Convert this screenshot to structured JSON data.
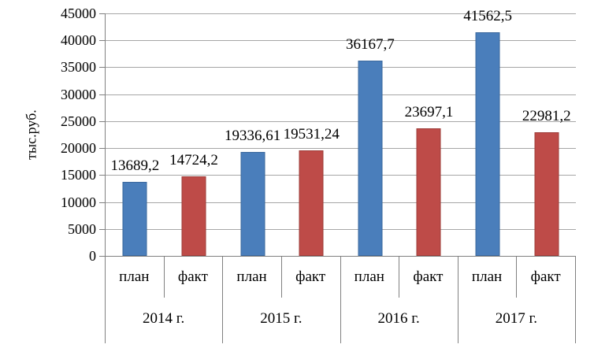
{
  "chart_data": {
    "type": "bar",
    "ylabel": "тыс.руб.",
    "ylim": [
      0,
      45000
    ],
    "ytick_step": 5000,
    "grid": true,
    "legend_position": "none",
    "groups": [
      "2014 г.",
      "2015 г.",
      "2016 г.",
      "2017 г."
    ],
    "sub_categories": [
      "план",
      "факт"
    ],
    "series": [
      {
        "name": "план",
        "color": "#4A7EBB",
        "border_color": "#3B689D",
        "values": [
          13689.2,
          19336.61,
          36167.7,
          41562.5
        ],
        "labels": [
          "13689,2",
          "19336,61",
          "36167,7",
          "41562,5"
        ]
      },
      {
        "name": "факт",
        "color": "#BE4B48",
        "border_color": "#9E3C39",
        "values": [
          14724.2,
          19531.24,
          23697.1,
          22981.2
        ],
        "labels": [
          "14724,2",
          "19531,24",
          "23697,1",
          "22981,2"
        ]
      }
    ],
    "colors": {
      "grid": "#A6A6A6",
      "axis": "#808080",
      "text": "#000000"
    }
  }
}
